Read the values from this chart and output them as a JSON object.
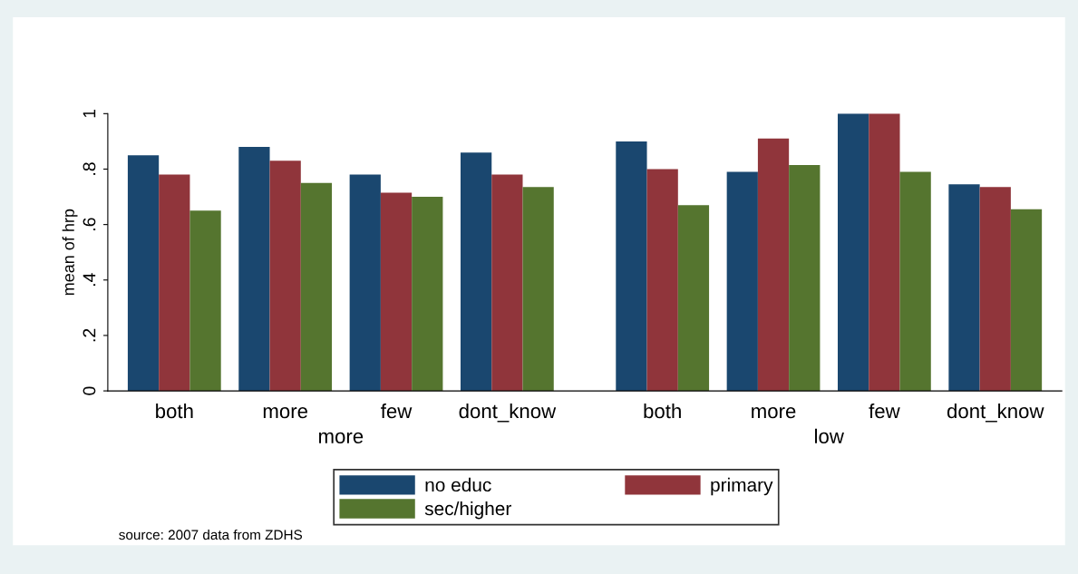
{
  "chart_data": {
    "type": "bar",
    "ylabel": "mean of hrp",
    "categories": [
      "both",
      "more",
      "few",
      "dont_know",
      "both",
      "more",
      "few",
      "dont_know"
    ],
    "series": [
      {
        "name": "no educ",
        "color": "#1a476f",
        "values": [
          0.85,
          0.88,
          0.78,
          0.86,
          0.9,
          0.79,
          1.0,
          0.745
        ]
      },
      {
        "name": "primary",
        "color": "#90353b",
        "values": [
          0.78,
          0.83,
          0.715,
          0.78,
          0.8,
          0.91,
          1.0,
          0.735
        ]
      },
      {
        "name": "sec/higher",
        "color": "#55752f",
        "values": [
          0.65,
          0.75,
          0.7,
          0.735,
          0.67,
          0.815,
          0.79,
          0.655
        ]
      }
    ],
    "ylim": [
      0,
      1
    ],
    "yticks": [
      {
        "value": 0,
        "label": "0"
      },
      {
        "value": 0.2,
        "label": ".2"
      },
      {
        "value": 0.4,
        "label": ".4"
      },
      {
        "value": 0.6,
        "label": ".6"
      },
      {
        "value": 0.8,
        "label": ".8"
      },
      {
        "value": 1,
        "label": "1"
      }
    ],
    "annotations": [
      "more",
      "low",
      "source: 2007 data from ZDHS"
    ],
    "grid": false,
    "legend": "bottom"
  }
}
